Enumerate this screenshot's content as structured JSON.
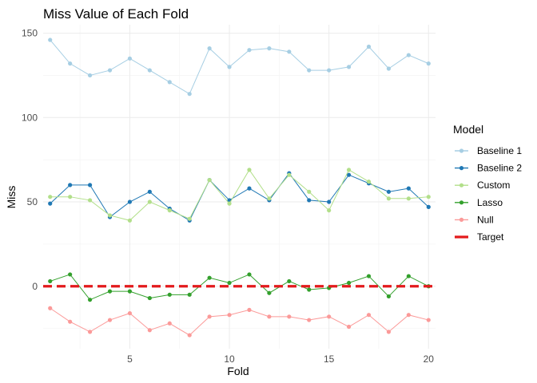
{
  "chart_data": {
    "type": "line",
    "title": "Miss Value of Each Fold",
    "xlabel": "Fold",
    "ylabel": "Miss",
    "xlim": [
      0.65,
      20.35
    ],
    "ylim": [
      -37,
      155
    ],
    "x_ticks": [
      5,
      10,
      15,
      20
    ],
    "y_ticks": [
      0,
      50,
      100,
      150
    ],
    "grid": true,
    "legend_title": "Model",
    "legend_position": "right",
    "x": [
      1,
      2,
      3,
      4,
      5,
      6,
      7,
      8,
      9,
      10,
      11,
      12,
      13,
      14,
      15,
      16,
      17,
      18,
      19,
      20
    ],
    "series": [
      {
        "name": "Baseline 1",
        "color": "#a6cee3",
        "values": [
          146,
          132,
          125,
          128,
          135,
          128,
          121,
          114,
          141,
          130,
          140,
          141,
          139,
          128,
          128,
          130,
          142,
          129,
          137,
          132
        ]
      },
      {
        "name": "Baseline 2",
        "color": "#1f78b4",
        "values": [
          49,
          60,
          60,
          41,
          50,
          56,
          46,
          39,
          63,
          51,
          58,
          51,
          67,
          51,
          50,
          66,
          61,
          56,
          58,
          47
        ]
      },
      {
        "name": "Custom",
        "color": "#b2df8a",
        "values": [
          53,
          53,
          51,
          42,
          39,
          50,
          45,
          40,
          63,
          49,
          69,
          52,
          66,
          56,
          45,
          69,
          62,
          52,
          52,
          53
        ]
      },
      {
        "name": "Lasso",
        "color": "#33a02c",
        "values": [
          3,
          7,
          -8,
          -3,
          -3,
          -7,
          -5,
          -5,
          5,
          2,
          7,
          -4,
          3,
          -2,
          -1,
          2,
          6,
          -6,
          6,
          0
        ]
      },
      {
        "name": "Null",
        "color": "#fb9a99",
        "values": [
          -13,
          -21,
          -27,
          -20,
          -16,
          -26,
          -22,
          -29,
          -18,
          -17,
          -14,
          -18,
          -18,
          -20,
          -18,
          -24,
          -17,
          -27,
          -17,
          -20
        ]
      },
      {
        "name": "Target",
        "color": "#e31a1c",
        "line_style": "dashed",
        "values": [
          0,
          0,
          0,
          0,
          0,
          0,
          0,
          0,
          0,
          0,
          0,
          0,
          0,
          0,
          0,
          0,
          0,
          0,
          0,
          0
        ]
      }
    ]
  }
}
